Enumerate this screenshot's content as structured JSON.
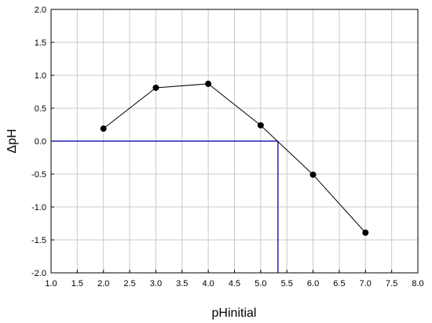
{
  "chart_data": {
    "type": "line",
    "title": "",
    "xlabel": "pHinitial",
    "ylabel": "ΔpH",
    "xlim": [
      1.0,
      8.0
    ],
    "ylim": [
      -2.0,
      2.0
    ],
    "xticks": [
      "1.0",
      "1.5",
      "2.0",
      "2.5",
      "3.0",
      "3.5",
      "4.0",
      "4.5",
      "5.0",
      "5.5",
      "6.0",
      "6.5",
      "7.0",
      "7.5",
      "8.0"
    ],
    "yticks": [
      "2.0",
      "1.5",
      "1.0",
      "0.5",
      "0.0",
      "-0.5",
      "-1.0",
      "-1.5",
      "-2.0"
    ],
    "grid": true,
    "legend": "none",
    "series": [
      {
        "color": "#000000",
        "points": [
          {
            "x": 2.0,
            "y": 0.19
          },
          {
            "x": 3.0,
            "y": 0.81
          },
          {
            "x": 4.0,
            "y": 0.87
          },
          {
            "x": 5.0,
            "y": 0.24
          },
          {
            "x": 6.0,
            "y": -0.51
          },
          {
            "x": 7.0,
            "y": -1.39
          }
        ]
      }
    ],
    "reference_lines": {
      "color": "#1f1fb4",
      "pzc_x": 5.33,
      "zero_y": 0.0
    }
  }
}
